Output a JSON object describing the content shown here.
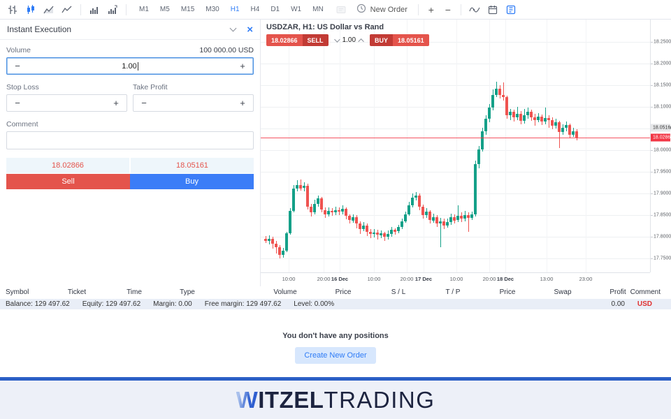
{
  "toolbar": {
    "new_order_label": "New Order",
    "zoom_in": "+",
    "zoom_out": "−",
    "icons": [
      "bars-chart-icon",
      "candles-chart-icon",
      "area-chart-icon",
      "line-chart-icon",
      "volume-icon",
      "volume-profile-icon",
      "chart-window-icon",
      "clock-icon",
      "zoom-in-icon",
      "zoom-out-icon",
      "indicator-icon",
      "calendar-icon",
      "trade-panel-icon"
    ],
    "timeframes": {
      "items": [
        "M1",
        "M5",
        "M15",
        "M30",
        "H1",
        "H4",
        "D1",
        "W1",
        "MN"
      ],
      "active": "H1"
    },
    "accent_color": "#2f7cf6"
  },
  "order_panel": {
    "title": "Instant Execution",
    "close_icon": "×",
    "volume_label": "Volume",
    "volume_contract": "100 000.00 USD",
    "volume_value": "1.00",
    "minus": "−",
    "plus": "+",
    "stop_loss_label": "Stop Loss",
    "take_profit_label": "Take Profit",
    "comment_label": "Comment",
    "comment_value": "",
    "sell_price": "18.02866",
    "buy_price": "18.05161",
    "sell_label": "Sell",
    "buy_label": "Buy",
    "sell_color": "#e4544c",
    "buy_color": "#3b7df7"
  },
  "chart": {
    "title": "USDZAR, H1: US Dollar vs Rand",
    "oneclick": {
      "sell_price": "18.02866",
      "sell_label": "SELL",
      "lot": "1.00",
      "buy_label": "BUY",
      "buy_price": "18.05161"
    }
  },
  "chart_data": {
    "type": "candlestick",
    "symbol": "USDZAR",
    "timeframe": "H1",
    "title": "USDZAR, H1: US Dollar vs Rand",
    "ylim": [
      17.7177,
      18.3016
    ],
    "y_ticks": [
      18.25,
      18.2,
      18.15,
      18.1,
      18.05,
      18.0,
      17.95,
      17.9,
      17.85,
      17.8,
      17.75
    ],
    "y_tick_decimals": 5,
    "bid": 18.02866,
    "ask": 18.05161,
    "bid_label": "18.02866",
    "ask_label": "18.05161",
    "up_color": "#14a088",
    "down_color": "#ef5350",
    "bid_line_color": "#f23645",
    "grid": true,
    "x_ticks": [
      {
        "label": "10:00",
        "x": 40,
        "bold": false
      },
      {
        "label": "20:00",
        "x": 90,
        "bold": false
      },
      {
        "label": "16 Dec",
        "x": 113,
        "bold": true
      },
      {
        "label": "10:00",
        "x": 162,
        "bold": false
      },
      {
        "label": "20:00",
        "x": 209,
        "bold": false
      },
      {
        "label": "17 Dec",
        "x": 233,
        "bold": true
      },
      {
        "label": "10:00",
        "x": 280,
        "bold": false
      },
      {
        "label": "20:00",
        "x": 327,
        "bold": false
      },
      {
        "label": "18 Dec",
        "x": 350,
        "bold": true
      },
      {
        "label": "13:00",
        "x": 409,
        "bold": false
      },
      {
        "label": "23:00",
        "x": 465,
        "bold": false
      }
    ],
    "candles_ohlc": [
      [
        17.795,
        17.802,
        17.785,
        17.79
      ],
      [
        17.79,
        17.804,
        17.782,
        17.796
      ],
      [
        17.796,
        17.8,
        17.772,
        17.784
      ],
      [
        17.784,
        17.79,
        17.762,
        17.776
      ],
      [
        17.776,
        17.78,
        17.75,
        17.758
      ],
      [
        17.758,
        17.775,
        17.752,
        17.768
      ],
      [
        17.768,
        17.812,
        17.764,
        17.808
      ],
      [
        17.808,
        17.866,
        17.805,
        17.86
      ],
      [
        17.86,
        17.92,
        17.856,
        17.912
      ],
      [
        17.912,
        17.93,
        17.905,
        17.92
      ],
      [
        17.92,
        17.932,
        17.906,
        17.912
      ],
      [
        17.912,
        17.926,
        17.904,
        17.918
      ],
      [
        17.918,
        17.922,
        17.862,
        17.87
      ],
      [
        17.87,
        17.876,
        17.846,
        17.856
      ],
      [
        17.856,
        17.886,
        17.852,
        17.876
      ],
      [
        17.876,
        17.896,
        17.87,
        17.888
      ],
      [
        17.888,
        17.892,
        17.856,
        17.862
      ],
      [
        17.862,
        17.868,
        17.844,
        17.852
      ],
      [
        17.852,
        17.868,
        17.846,
        17.86
      ],
      [
        17.86,
        17.866,
        17.848,
        17.856
      ],
      [
        17.856,
        17.87,
        17.85,
        17.862
      ],
      [
        17.862,
        17.868,
        17.85,
        17.858
      ],
      [
        17.858,
        17.872,
        17.852,
        17.864
      ],
      [
        17.864,
        17.868,
        17.84,
        17.848
      ],
      [
        17.848,
        17.852,
        17.83,
        17.838
      ],
      [
        17.838,
        17.852,
        17.832,
        17.846
      ],
      [
        17.846,
        17.85,
        17.82,
        17.83
      ],
      [
        17.83,
        17.836,
        17.806,
        17.818
      ],
      [
        17.818,
        17.834,
        17.812,
        17.826
      ],
      [
        17.826,
        17.83,
        17.802,
        17.812
      ],
      [
        17.812,
        17.818,
        17.796,
        17.806
      ],
      [
        17.806,
        17.818,
        17.798,
        17.81
      ],
      [
        17.81,
        17.816,
        17.794,
        17.804
      ],
      [
        17.804,
        17.814,
        17.796,
        17.808
      ],
      [
        17.808,
        17.812,
        17.79,
        17.8
      ],
      [
        17.8,
        17.814,
        17.794,
        17.806
      ],
      [
        17.806,
        17.822,
        17.8,
        17.816
      ],
      [
        17.816,
        17.82,
        17.804,
        17.812
      ],
      [
        17.812,
        17.828,
        17.808,
        17.822
      ],
      [
        17.822,
        17.842,
        17.818,
        17.836
      ],
      [
        17.836,
        17.858,
        17.832,
        17.852
      ],
      [
        17.852,
        17.88,
        17.848,
        17.872
      ],
      [
        17.872,
        17.9,
        17.868,
        17.89
      ],
      [
        17.89,
        17.904,
        17.884,
        17.896
      ],
      [
        17.896,
        17.9,
        17.862,
        17.87
      ],
      [
        17.87,
        17.874,
        17.842,
        17.85
      ],
      [
        17.85,
        17.866,
        17.844,
        17.858
      ],
      [
        17.858,
        17.862,
        17.83,
        17.838
      ],
      [
        17.838,
        17.854,
        17.832,
        17.846
      ],
      [
        17.846,
        17.85,
        17.822,
        17.83
      ],
      [
        17.83,
        17.844,
        17.776,
        17.836
      ],
      [
        17.836,
        17.842,
        17.818,
        17.826
      ],
      [
        17.826,
        17.842,
        17.82,
        17.834
      ],
      [
        17.834,
        17.854,
        17.828,
        17.846
      ],
      [
        17.846,
        17.852,
        17.83,
        17.838
      ],
      [
        17.838,
        17.872,
        17.834,
        17.848
      ],
      [
        17.848,
        17.856,
        17.834,
        17.842
      ],
      [
        17.842,
        17.86,
        17.836,
        17.85
      ],
      [
        17.85,
        17.856,
        17.812,
        17.844
      ],
      [
        17.844,
        17.858,
        17.838,
        17.852
      ],
      [
        17.852,
        17.976,
        17.846,
        17.968
      ],
      [
        17.968,
        18.01,
        17.958,
        18.002
      ],
      [
        18.002,
        18.052,
        17.996,
        18.044
      ],
      [
        18.044,
        18.08,
        18.036,
        18.072
      ],
      [
        18.072,
        18.106,
        18.064,
        18.098
      ],
      [
        18.098,
        18.14,
        18.092,
        18.128
      ],
      [
        18.128,
        18.158,
        18.122,
        18.142
      ],
      [
        18.142,
        18.15,
        18.12,
        18.128
      ],
      [
        18.128,
        18.156,
        18.114,
        18.122
      ],
      [
        18.122,
        18.126,
        18.072,
        18.08
      ],
      [
        18.08,
        18.096,
        18.07,
        18.088
      ],
      [
        18.088,
        18.094,
        18.066,
        18.076
      ],
      [
        18.076,
        18.1,
        18.07,
        18.084
      ],
      [
        18.084,
        18.09,
        18.06,
        18.068
      ],
      [
        18.068,
        18.096,
        18.062,
        18.08
      ],
      [
        18.08,
        18.098,
        18.072,
        18.088
      ],
      [
        18.088,
        18.094,
        18.068,
        18.076
      ],
      [
        18.076,
        18.084,
        18.056,
        18.07
      ],
      [
        18.07,
        18.086,
        18.064,
        18.078
      ],
      [
        18.078,
        18.082,
        18.058,
        18.066
      ],
      [
        18.066,
        18.098,
        18.06,
        18.074
      ],
      [
        18.074,
        18.08,
        18.052,
        18.07
      ],
      [
        18.07,
        18.076,
        18.048,
        18.056
      ],
      [
        18.056,
        18.072,
        18.05,
        18.064
      ],
      [
        18.064,
        18.068,
        18.004,
        18.042
      ],
      [
        18.042,
        18.06,
        18.036,
        18.052
      ],
      [
        18.052,
        18.066,
        18.044,
        18.058
      ],
      [
        18.058,
        18.062,
        18.028,
        18.036
      ],
      [
        18.036,
        18.052,
        18.03,
        18.044
      ],
      [
        18.044,
        18.048,
        18.022,
        18.029
      ]
    ]
  },
  "positions_table": {
    "columns": [
      "Symbol",
      "Ticket",
      "Time",
      "Type",
      "Volume",
      "Price",
      "S / L",
      "T / P",
      "Price",
      "Swap",
      "Profit",
      "Comment"
    ],
    "empty_text": "You don't have any positions",
    "create_order_label": "Create New Order"
  },
  "account_bar": {
    "stats": [
      {
        "label": "Balance",
        "value": "129 497.62"
      },
      {
        "label": "Equity",
        "value": "129 497.62"
      },
      {
        "label": "Margin",
        "value": "0.00"
      },
      {
        "label": "Free margin",
        "value": "129 497.62"
      },
      {
        "label": "Level",
        "value": "0.00%"
      }
    ],
    "profit": "0.00",
    "currency": "USD"
  },
  "footer": {
    "brand_w": "W",
    "brand_bold": "ITZEL",
    "brand_light": "TRADING",
    "line_color": "#2b5fc6"
  }
}
